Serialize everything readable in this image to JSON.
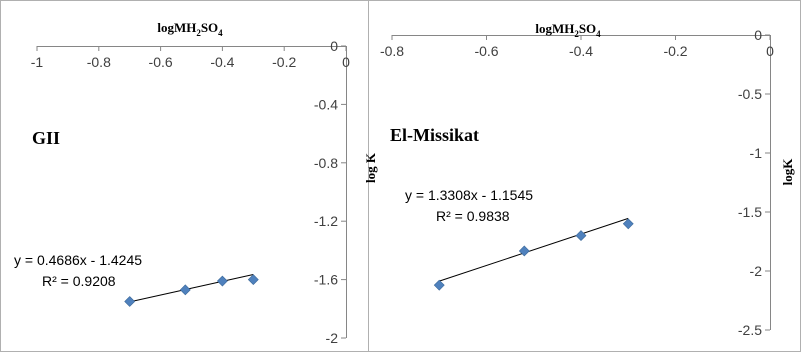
{
  "chart_data": [
    {
      "type": "scatter",
      "panel_label": "GII",
      "xlabel": {
        "base": "logMH",
        "sub1": "2",
        "mid": "SO",
        "sub2": "4"
      },
      "ylabel": "log K",
      "xlim": [
        -1,
        0
      ],
      "ylim": [
        -2,
        0
      ],
      "xticks": [
        -1,
        -0.8,
        -0.6,
        -0.4,
        -0.2,
        0
      ],
      "yticks": [
        0,
        -0.4,
        -0.8,
        -1.2,
        -1.6,
        -2
      ],
      "xtick_labels": [
        "-1",
        "-0.8",
        "-0.6",
        "-0.4",
        "-0.2",
        "0"
      ],
      "ytick_labels": [
        "0",
        "-0.4",
        "-0.8",
        "-1.2",
        "-1.6",
        "-2"
      ],
      "x_axis_position": "top",
      "y_axis_position": "right",
      "points": [
        {
          "x": -0.7,
          "y": -1.75
        },
        {
          "x": -0.52,
          "y": -1.67
        },
        {
          "x": -0.4,
          "y": -1.61
        },
        {
          "x": -0.3,
          "y": -1.6
        }
      ],
      "trendline": {
        "slope": 0.4686,
        "intercept": -1.4245
      },
      "equation": "y = 0.4686x - 1.4245",
      "r2": "R² = 0.9208",
      "marker_color": "#4F81BD"
    },
    {
      "type": "scatter",
      "panel_label": "El-Missikat",
      "xlabel": {
        "base": "logMH",
        "sub1": "2",
        "mid": "SO",
        "sub2": "4"
      },
      "ylabel": "logK",
      "xlim": [
        -0.8,
        0
      ],
      "ylim": [
        -2.5,
        0
      ],
      "xticks": [
        -0.8,
        -0.6,
        -0.4,
        -0.2,
        0
      ],
      "yticks": [
        0,
        -0.5,
        -1,
        -1.5,
        -2,
        -2.5
      ],
      "xtick_labels": [
        "-0.8",
        "-0.6",
        "-0.4",
        "-0.2",
        "0"
      ],
      "ytick_labels": [
        "0",
        "-0.5",
        "-1",
        "-1.5",
        "-2",
        "-2.5"
      ],
      "x_axis_position": "top",
      "y_axis_position": "right",
      "points": [
        {
          "x": -0.7,
          "y": -2.12
        },
        {
          "x": -0.52,
          "y": -1.83
        },
        {
          "x": -0.4,
          "y": -1.7
        },
        {
          "x": -0.3,
          "y": -1.6
        }
      ],
      "trendline": {
        "slope": 1.3308,
        "intercept": -1.1545
      },
      "equation": "y = 1.3308x - 1.1545",
      "r2": "R² = 0.9838",
      "marker_color": "#4F81BD"
    }
  ]
}
